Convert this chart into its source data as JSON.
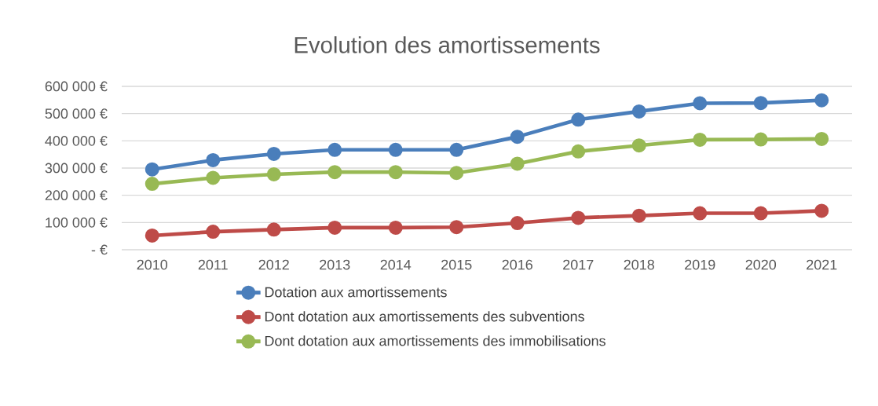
{
  "chart_data": {
    "type": "line",
    "title": "Evolution des amortissements",
    "categories": [
      "2010",
      "2011",
      "2012",
      "2013",
      "2014",
      "2015",
      "2016",
      "2017",
      "2018",
      "2019",
      "2020",
      "2021"
    ],
    "series": [
      {
        "name": "Dotation aux amortissements",
        "color": "#4a7ebb",
        "values": [
          295000,
          329000,
          352000,
          367000,
          367000,
          367000,
          415000,
          478000,
          508000,
          538000,
          539000,
          549000
        ]
      },
      {
        "name": "Dont dotation aux amortissements des subventions",
        "color": "#be4b48",
        "values": [
          52000,
          66000,
          74000,
          81000,
          81000,
          83000,
          98000,
          117000,
          125000,
          134000,
          134000,
          143000
        ]
      },
      {
        "name": "Dont dotation aux amortissements des immobilisations",
        "color": "#98b954",
        "values": [
          242000,
          264000,
          277000,
          285000,
          285000,
          282000,
          316000,
          361000,
          383000,
          404000,
          405000,
          407000
        ]
      }
    ],
    "ylim": [
      0,
      600000
    ],
    "yticks": [
      {
        "value": 0,
        "label": "-   €"
      },
      {
        "value": 100000,
        "label": "100 000 €"
      },
      {
        "value": 200000,
        "label": "200 000 €"
      },
      {
        "value": 300000,
        "label": "300 000 €"
      },
      {
        "value": 400000,
        "label": "400 000 €"
      },
      {
        "value": 500000,
        "label": "500 000 €"
      },
      {
        "value": 600000,
        "label": "600 000 €"
      }
    ],
    "grid": "y",
    "legend": "bottom",
    "marker": "circle",
    "line_style": "solid"
  }
}
